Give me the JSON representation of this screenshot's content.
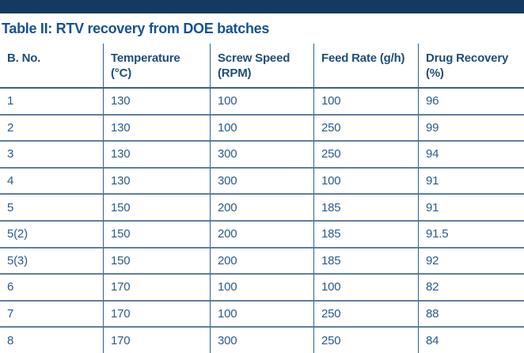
{
  "title": "Table II: RTV recovery from DOE batches",
  "colors": {
    "top_bar": "#143a63",
    "title_text": "#17528f",
    "header_text": "#1f4e79",
    "cell_text": "#2a5a8c",
    "grid_vertical": "#2e6396",
    "grid_horizontal": "#5e80a2"
  },
  "table": {
    "columns": [
      {
        "lines": [
          "B. No."
        ]
      },
      {
        "lines": [
          "Temperature",
          "(°C)"
        ]
      },
      {
        "lines": [
          "Screw Speed",
          "(RPM)"
        ]
      },
      {
        "lines": [
          "Feed Rate (g/h)"
        ]
      },
      {
        "lines": [
          "Drug Recovery",
          "(%)"
        ]
      }
    ],
    "rows": [
      [
        "1",
        "130",
        "100",
        "100",
        "96"
      ],
      [
        "2",
        "130",
        "100",
        "250",
        "99"
      ],
      [
        "3",
        "130",
        "300",
        "250",
        "94"
      ],
      [
        "4",
        "130",
        "300",
        "100",
        "91"
      ],
      [
        "5",
        "150",
        "200",
        "185",
        "91"
      ],
      [
        "5(2)",
        "150",
        "200",
        "185",
        "91.5"
      ],
      [
        "5(3)",
        "150",
        "200",
        "185",
        "92"
      ],
      [
        "6",
        "170",
        "100",
        "100",
        "82"
      ],
      [
        "7",
        "170",
        "100",
        "250",
        "88"
      ],
      [
        "8",
        "170",
        "300",
        "250",
        "84"
      ]
    ]
  }
}
